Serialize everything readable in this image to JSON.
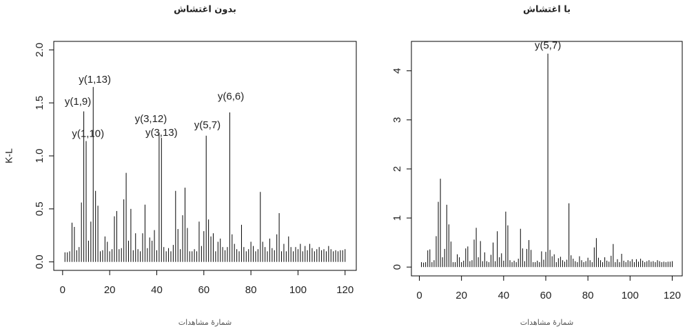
{
  "chart_data": [
    {
      "type": "spike",
      "title": "بدون اغتشاش",
      "x_label": "شمارهٔ مشاهدات",
      "y_label": "K-L",
      "x": [
        1,
        2,
        3,
        4,
        5,
        6,
        7,
        8,
        9,
        10,
        11,
        12,
        13,
        14,
        15,
        16,
        17,
        18,
        19,
        20,
        21,
        22,
        23,
        24,
        25,
        26,
        27,
        28,
        29,
        30,
        31,
        32,
        33,
        34,
        35,
        36,
        37,
        38,
        39,
        40,
        41,
        42,
        43,
        44,
        45,
        46,
        47,
        48,
        49,
        50,
        51,
        52,
        53,
        54,
        55,
        56,
        57,
        58,
        59,
        60,
        61,
        62,
        63,
        64,
        65,
        66,
        67,
        68,
        69,
        70,
        71,
        72,
        73,
        74,
        75,
        76,
        77,
        78,
        79,
        80,
        81,
        82,
        83,
        84,
        85,
        86,
        87,
        88,
        89,
        90,
        91,
        92,
        93,
        94,
        95,
        96,
        97,
        98,
        99,
        100,
        101,
        102,
        103,
        104,
        105,
        106,
        107,
        108,
        109,
        110,
        111,
        112,
        113,
        114,
        115,
        116,
        117,
        118,
        119,
        120
      ],
      "values": [
        0.09,
        0.09,
        0.1,
        0.37,
        0.33,
        0.11,
        0.14,
        0.56,
        1.42,
        1.14,
        0.2,
        0.38,
        1.65,
        0.67,
        0.53,
        0.1,
        0.11,
        0.24,
        0.19,
        0.1,
        0.12,
        0.43,
        0.48,
        0.12,
        0.13,
        0.59,
        0.84,
        0.2,
        0.5,
        0.11,
        0.27,
        0.12,
        0.1,
        0.27,
        0.54,
        0.13,
        0.23,
        0.2,
        0.3,
        0.11,
        1.22,
        1.17,
        0.14,
        0.1,
        0.13,
        0.1,
        0.16,
        0.67,
        0.31,
        0.12,
        0.44,
        0.7,
        0.32,
        0.1,
        0.1,
        0.12,
        0.1,
        0.38,
        0.15,
        0.29,
        1.19,
        0.4,
        0.24,
        0.27,
        0.1,
        0.19,
        0.22,
        0.14,
        0.11,
        0.14,
        1.41,
        0.26,
        0.17,
        0.12,
        0.1,
        0.35,
        0.14,
        0.1,
        0.12,
        0.19,
        0.15,
        0.1,
        0.12,
        0.66,
        0.19,
        0.14,
        0.1,
        0.22,
        0.13,
        0.11,
        0.26,
        0.46,
        0.1,
        0.17,
        0.1,
        0.24,
        0.14,
        0.1,
        0.14,
        0.12,
        0.17,
        0.1,
        0.15,
        0.11,
        0.17,
        0.13,
        0.1,
        0.12,
        0.14,
        0.11,
        0.12,
        0.1,
        0.15,
        0.12,
        0.1,
        0.11,
        0.1,
        0.11,
        0.11,
        0.12
      ],
      "color": "#000000",
      "xlim": [
        -3.76,
        124.76
      ],
      "xticks": [
        0,
        20,
        40,
        60,
        80,
        100,
        120
      ],
      "ylim": [
        -0.08,
        2.08
      ],
      "yticks": [
        {
          "value": 0,
          "label": "0.0"
        },
        0.5,
        {
          "value": 1,
          "label": "1.0"
        },
        1.5,
        {
          "value": 2,
          "label": "2.0"
        }
      ],
      "annotations": [
        {
          "text": "y(1,9)",
          "x": 6.5,
          "y": 1.48
        },
        {
          "text": "y(1,10)",
          "x": 10.8,
          "y": 1.18
        },
        {
          "text": "y(1,13)",
          "x": 13.7,
          "y": 1.69
        },
        {
          "text": "y(3,12)",
          "x": 37.5,
          "y": 1.32
        },
        {
          "text": "y(3,13)",
          "x": 42,
          "y": 1.19
        },
        {
          "text": "y(5,7)",
          "x": 61.5,
          "y": 1.26
        },
        {
          "text": "y(6,6)",
          "x": 71.5,
          "y": 1.53
        }
      ]
    },
    {
      "type": "spike",
      "title": "با اغتشاش",
      "x_label": "شمارهٔ مشاهدات",
      "x": [
        1,
        2,
        3,
        4,
        5,
        6,
        7,
        8,
        9,
        10,
        11,
        12,
        13,
        14,
        15,
        16,
        17,
        18,
        19,
        20,
        21,
        22,
        23,
        24,
        25,
        26,
        27,
        28,
        29,
        30,
        31,
        32,
        33,
        34,
        35,
        36,
        37,
        38,
        39,
        40,
        41,
        42,
        43,
        44,
        45,
        46,
        47,
        48,
        49,
        50,
        51,
        52,
        53,
        54,
        55,
        56,
        57,
        58,
        59,
        60,
        61,
        62,
        63,
        64,
        65,
        66,
        67,
        68,
        69,
        70,
        71,
        72,
        73,
        74,
        75,
        76,
        77,
        78,
        79,
        80,
        81,
        82,
        83,
        84,
        85,
        86,
        87,
        88,
        89,
        90,
        91,
        92,
        93,
        94,
        95,
        96,
        97,
        98,
        99,
        100,
        101,
        102,
        103,
        104,
        105,
        106,
        107,
        108,
        109,
        110,
        111,
        112,
        113,
        114,
        115,
        116,
        117,
        118,
        119,
        120
      ],
      "values": [
        0.1,
        0.09,
        0.1,
        0.34,
        0.36,
        0.1,
        0.14,
        0.63,
        1.33,
        1.8,
        0.2,
        0.37,
        1.27,
        0.87,
        0.52,
        0.1,
        0.1,
        0.26,
        0.2,
        0.1,
        0.13,
        0.38,
        0.42,
        0.12,
        0.14,
        0.56,
        0.8,
        0.2,
        0.53,
        0.12,
        0.3,
        0.12,
        0.1,
        0.25,
        0.5,
        0.12,
        0.73,
        0.2,
        0.28,
        0.13,
        1.13,
        0.85,
        0.14,
        0.1,
        0.13,
        0.1,
        0.17,
        0.78,
        0.38,
        0.12,
        0.37,
        0.55,
        0.35,
        0.1,
        0.1,
        0.13,
        0.1,
        0.32,
        0.15,
        0.31,
        4.35,
        0.35,
        0.22,
        0.26,
        0.1,
        0.18,
        0.21,
        0.14,
        0.11,
        0.15,
        1.3,
        0.24,
        0.17,
        0.12,
        0.1,
        0.22,
        0.14,
        0.1,
        0.12,
        0.19,
        0.14,
        0.1,
        0.4,
        0.59,
        0.19,
        0.14,
        0.1,
        0.2,
        0.13,
        0.11,
        0.23,
        0.47,
        0.1,
        0.16,
        0.1,
        0.27,
        0.13,
        0.1,
        0.14,
        0.12,
        0.16,
        0.1,
        0.16,
        0.11,
        0.17,
        0.13,
        0.1,
        0.12,
        0.14,
        0.11,
        0.12,
        0.1,
        0.14,
        0.12,
        0.1,
        0.11,
        0.1,
        0.11,
        0.11,
        0.12
      ],
      "color": "#000000",
      "xlim": [
        -3.76,
        124.76
      ],
      "xticks": [
        0,
        20,
        40,
        60,
        80,
        100,
        120
      ],
      "ylim": [
        -0.18,
        4.6
      ],
      "yticks": [
        0,
        1,
        2,
        3,
        4
      ],
      "annotations": [
        {
          "text": "y(5,7)",
          "x": 61,
          "y": 4.45
        }
      ]
    }
  ]
}
